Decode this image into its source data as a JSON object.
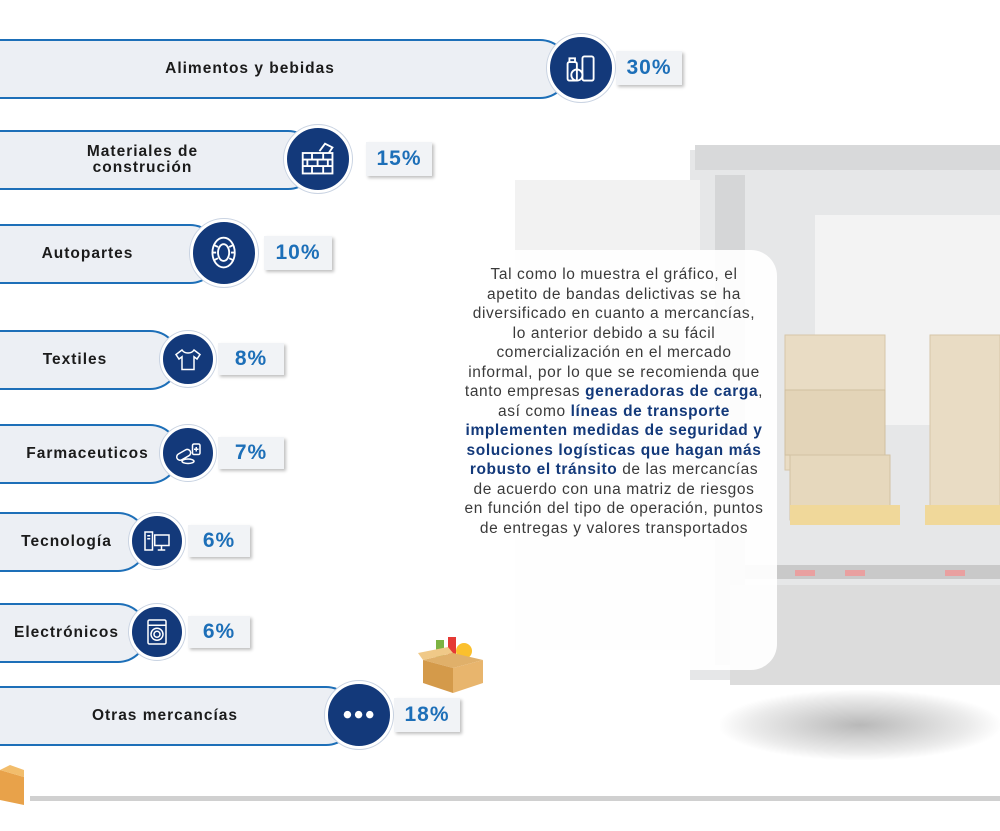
{
  "chart_data": {
    "type": "bar",
    "categories": [
      "Alimentos y bebidas",
      "Materiales de construcción",
      "Autopartes",
      "Textiles",
      "Farmaceuticos",
      "Tecnología",
      "Electrónicos",
      "Otras mercancías"
    ],
    "values": [
      30,
      15,
      10,
      8,
      7,
      6,
      6,
      18
    ],
    "unit": "%",
    "value_labels": [
      "30%",
      "15%",
      "10%",
      "8%",
      "7%",
      "6%",
      "6%",
      "18%"
    ]
  },
  "rows": [
    {
      "label_1": "Alimentos y bebidas",
      "label_2": "",
      "value_label": "30%",
      "icon": "food-icon"
    },
    {
      "label_1": "Materiales de",
      "label_2": "construción",
      "value_label": "15%",
      "icon": "brick-wall-icon"
    },
    {
      "label_1": "Autopartes",
      "label_2": "",
      "value_label": "10%",
      "icon": "tire-icon"
    },
    {
      "label_1": "Textiles",
      "label_2": "",
      "value_label": "8%",
      "icon": "shirt-icon"
    },
    {
      "label_1": "Farmaceuticos",
      "label_2": "",
      "value_label": "7%",
      "icon": "pills-icon"
    },
    {
      "label_1": "Tecnología",
      "label_2": "",
      "value_label": "6%",
      "icon": "computer-icon"
    },
    {
      "label_1": "Electrónicos",
      "label_2": "",
      "value_label": "6%",
      "icon": "washing-machine-icon"
    },
    {
      "label_1": "Otras mercancías",
      "label_2": "",
      "value_label": "18%",
      "icon": "more-icon"
    }
  ],
  "text_block": {
    "p1": "Tal como lo muestra el gráfico, el apetito de bandas delictivas se ha diversificado en cuanto a mercancías, lo anterior debido a su fácil comercialización en el mercado informal, por lo que se recomienda que tanto empresas ",
    "b1": "generadoras de carga",
    "p2": ", así como ",
    "b2": "líneas de transporte implementen medidas de seguridad y soluciones logísticas que hagan más robusto el tránsito",
    "p3": " de las mercancías de acuerdo con una matriz de riesgos en función del tipo de operación, puntos de entregas y valores transportados"
  },
  "colors": {
    "accent": "#1d6fb8",
    "navy": "#13397a",
    "pill": "#eceff4"
  }
}
